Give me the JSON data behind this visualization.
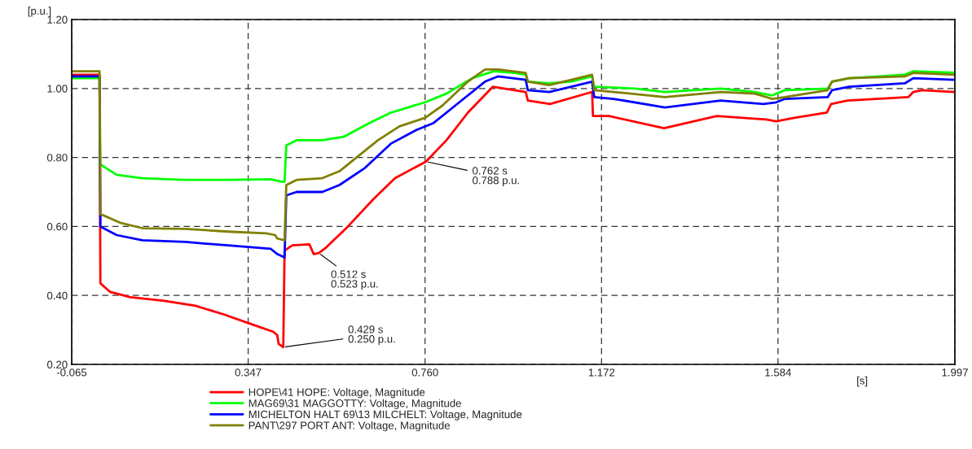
{
  "chart_data": {
    "type": "line",
    "xlabel": "[s]",
    "ylabel": "[p.u.]",
    "xlim": [
      -0.065,
      1.997
    ],
    "ylim": [
      0.2,
      1.2
    ],
    "xticks": [
      {
        "value": -0.065,
        "label": "-0.065"
      },
      {
        "value": 0.347,
        "label": "0.347"
      },
      {
        "value": 0.76,
        "label": "0.760"
      },
      {
        "value": 1.172,
        "label": "1.172"
      },
      {
        "value": 1.584,
        "label": "1.584"
      },
      {
        "value": 1.997,
        "label": "1.997"
      }
    ],
    "yticks": [
      {
        "value": 0.2,
        "label": "0.20"
      },
      {
        "value": 0.4,
        "label": "0.40"
      },
      {
        "value": 0.6,
        "label": "0.60"
      },
      {
        "value": 0.8,
        "label": "0.80"
      },
      {
        "value": 1.0,
        "label": "1.00"
      },
      {
        "value": 1.2,
        "label": "1.20"
      }
    ],
    "grid": true,
    "legend": "bottom",
    "marker": "none",
    "line_style": "solid",
    "series": [
      {
        "name": "HOPE\\41 HOPE: Voltage, Magnitude",
        "color": "#ff0000",
        "x": [
          -0.065,
          0.0,
          0.002,
          0.025,
          0.072,
          0.148,
          0.224,
          0.29,
          0.347,
          0.405,
          0.415,
          0.418,
          0.429,
          0.432,
          0.45,
          0.49,
          0.5,
          0.512,
          0.53,
          0.58,
          0.64,
          0.69,
          0.762,
          0.81,
          0.86,
          0.918,
          0.995,
          1.0,
          1.052,
          1.15,
          1.152,
          1.19,
          1.318,
          1.441,
          1.556,
          1.58,
          1.622,
          1.698,
          1.708,
          1.746,
          1.888,
          1.9,
          1.92,
          1.997
        ],
        "values": [
          1.04,
          1.04,
          0.435,
          0.41,
          0.395,
          0.385,
          0.37,
          0.345,
          0.32,
          0.295,
          0.285,
          0.26,
          0.25,
          0.53,
          0.545,
          0.548,
          0.52,
          0.523,
          0.54,
          0.6,
          0.68,
          0.74,
          0.788,
          0.85,
          0.93,
          1.005,
          0.99,
          0.965,
          0.955,
          0.99,
          0.92,
          0.92,
          0.885,
          0.92,
          0.91,
          0.905,
          0.915,
          0.93,
          0.955,
          0.965,
          0.975,
          0.99,
          0.995,
          0.99
        ]
      },
      {
        "name": "MAG69\\31 MAGGOTTY: Voltage, Magnitude",
        "color": "#00ff00",
        "x": [
          -0.065,
          0.0,
          0.002,
          0.04,
          0.1,
          0.2,
          0.3,
          0.4,
          0.425,
          0.432,
          0.436,
          0.46,
          0.52,
          0.57,
          0.63,
          0.68,
          0.72,
          0.76,
          0.81,
          0.87,
          0.92,
          0.97,
          0.995,
          1.0,
          1.05,
          1.1,
          1.15,
          1.155,
          1.25,
          1.32,
          1.45,
          1.53,
          1.57,
          1.58,
          1.6,
          1.7,
          1.71,
          1.75,
          1.88,
          1.9,
          1.997
        ],
        "values": [
          1.03,
          1.03,
          0.78,
          0.75,
          0.74,
          0.735,
          0.735,
          0.737,
          0.73,
          0.73,
          0.835,
          0.85,
          0.85,
          0.86,
          0.9,
          0.93,
          0.945,
          0.96,
          0.985,
          1.03,
          1.05,
          1.045,
          1.04,
          1.02,
          1.015,
          1.02,
          1.035,
          1.005,
          1.0,
          0.99,
          1.0,
          0.99,
          0.98,
          0.985,
          0.995,
          1.0,
          1.02,
          1.03,
          1.04,
          1.05,
          1.046
        ]
      },
      {
        "name": "MICHELTON HALT 69\\13 MILCHELT: Voltage, Magnitude",
        "color": "#0000ff",
        "x": [
          -0.065,
          0.0,
          0.002,
          0.04,
          0.1,
          0.2,
          0.3,
          0.4,
          0.415,
          0.432,
          0.436,
          0.46,
          0.52,
          0.56,
          0.62,
          0.68,
          0.74,
          0.78,
          0.84,
          0.9,
          0.93,
          0.995,
          1.0,
          1.05,
          1.15,
          1.155,
          1.2,
          1.32,
          1.45,
          1.55,
          1.58,
          1.6,
          1.7,
          1.71,
          1.75,
          1.88,
          1.9,
          1.997
        ],
        "values": [
          1.035,
          1.035,
          0.6,
          0.575,
          0.56,
          0.555,
          0.545,
          0.535,
          0.52,
          0.51,
          0.69,
          0.7,
          0.7,
          0.72,
          0.77,
          0.84,
          0.88,
          0.9,
          0.96,
          1.02,
          1.035,
          1.025,
          0.995,
          0.99,
          1.02,
          0.975,
          0.97,
          0.945,
          0.965,
          0.955,
          0.96,
          0.97,
          0.975,
          0.995,
          1.005,
          1.015,
          1.03,
          1.025
        ]
      },
      {
        "name": "PANT\\297 PORT ANT: Voltage, Magnitude",
        "color": "#808000",
        "x": [
          -0.065,
          0.0,
          0.002,
          0.05,
          0.1,
          0.2,
          0.3,
          0.39,
          0.41,
          0.415,
          0.432,
          0.436,
          0.46,
          0.52,
          0.56,
          0.6,
          0.65,
          0.7,
          0.76,
          0.8,
          0.86,
          0.9,
          0.93,
          0.995,
          1.0,
          1.05,
          1.15,
          1.155,
          1.2,
          1.32,
          1.45,
          1.53,
          1.57,
          1.6,
          1.7,
          1.71,
          1.75,
          1.88,
          1.9,
          1.997
        ],
        "values": [
          1.05,
          1.05,
          0.636,
          0.61,
          0.595,
          0.593,
          0.585,
          0.58,
          0.575,
          0.565,
          0.56,
          0.72,
          0.735,
          0.74,
          0.76,
          0.8,
          0.85,
          0.89,
          0.915,
          0.95,
          1.02,
          1.055,
          1.055,
          1.045,
          1.02,
          1.01,
          1.04,
          0.995,
          0.99,
          0.975,
          0.99,
          0.985,
          0.97,
          0.975,
          0.995,
          1.02,
          1.03,
          1.035,
          1.045,
          1.04
        ]
      }
    ],
    "annotations": [
      {
        "text": "0.429 s\n0.250 p.u.",
        "x": 0.429,
        "y": 0.25
      },
      {
        "text": "0.512 s\n0.523 p.u.",
        "x": 0.512,
        "y": 0.523
      },
      {
        "text": "0.762 s\n0.788 p.u.",
        "x": 0.762,
        "y": 0.788
      }
    ]
  }
}
